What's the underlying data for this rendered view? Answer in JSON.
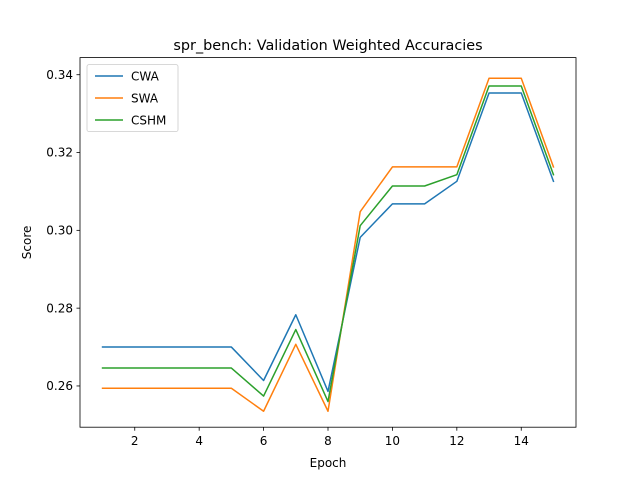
{
  "chart_data": {
    "type": "line",
    "title": "spr_bench: Validation Weighted Accuracies",
    "xlabel": "Epoch",
    "ylabel": "Score",
    "x": [
      1,
      2,
      3,
      4,
      5,
      6,
      7,
      8,
      9,
      10,
      11,
      12,
      13,
      14,
      15
    ],
    "xlim": [
      0.3,
      15.7
    ],
    "ylim": [
      0.2494,
      0.3444
    ],
    "xticks": [
      2,
      4,
      6,
      8,
      10,
      12,
      14
    ],
    "xtick_labels": [
      "2",
      "4",
      "6",
      "8",
      "10",
      "12",
      "14"
    ],
    "yticks": [
      0.26,
      0.28,
      0.3,
      0.32,
      0.34
    ],
    "ytick_labels": [
      "0.26",
      "0.28",
      "0.30",
      "0.32",
      "0.34"
    ],
    "grid": false,
    "legend_position": "top-left",
    "series": [
      {
        "name": "CWA",
        "color": "#1f77b4",
        "values": [
          0.27,
          0.27,
          0.27,
          0.27,
          0.27,
          0.2614,
          0.2783,
          0.2586,
          0.2982,
          0.3068,
          0.3068,
          0.3126,
          0.3353,
          0.3353,
          0.3126
        ]
      },
      {
        "name": "SWA",
        "color": "#ff7f0e",
        "values": [
          0.2594,
          0.2594,
          0.2594,
          0.2594,
          0.2594,
          0.2535,
          0.2707,
          0.2535,
          0.3048,
          0.3163,
          0.3163,
          0.3163,
          0.3391,
          0.3391,
          0.3163
        ]
      },
      {
        "name": "CSHM",
        "color": "#2ca02c",
        "values": [
          0.2646,
          0.2646,
          0.2646,
          0.2646,
          0.2646,
          0.2574,
          0.2745,
          0.256,
          0.3012,
          0.3114,
          0.3114,
          0.3143,
          0.3371,
          0.3371,
          0.3143
        ]
      }
    ]
  }
}
